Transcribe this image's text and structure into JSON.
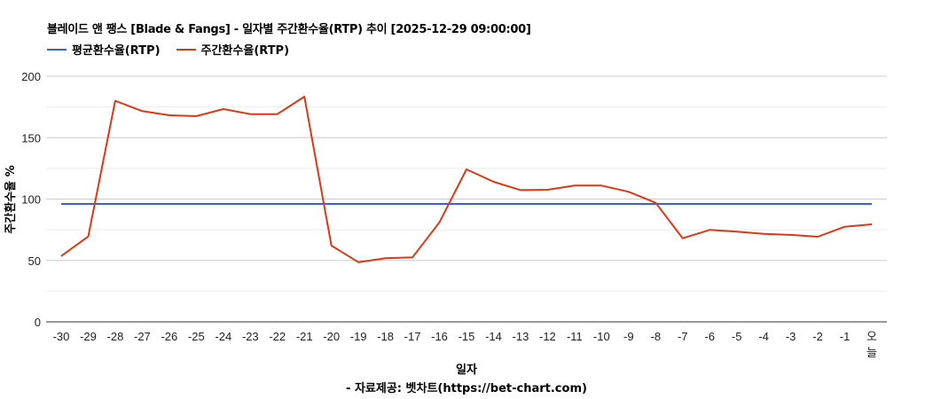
{
  "title": "블레이드 앤 팽스 [Blade & Fangs] - 일자별 주간환수율(RTP) 추이 [2025-12-29 09:00:00]",
  "legend": [
    {
      "label": "평균환수율(RTP)",
      "color": "#3366cc"
    },
    {
      "label": "주간환수율(RTP)",
      "color": "#dc3912"
    }
  ],
  "xaxis_title": "일자",
  "yaxis_title": "주간환수율 %",
  "footer": "- 자료제공: 벳차트(https://bet-chart.com)",
  "chart_data": {
    "type": "line",
    "title": "블레이드 앤 팽스 [Blade & Fangs] - 일자별 주간환수율(RTP) 추이 [2025-12-29 09:00:00]",
    "xlabel": "일자",
    "ylabel": "주간환수율 %",
    "ylim": [
      0,
      200
    ],
    "yticks": [
      0,
      50,
      100,
      150,
      200
    ],
    "grid": true,
    "legend_position": "top",
    "categories": [
      "-30",
      "-29",
      "-28",
      "-27",
      "-26",
      "-25",
      "-24",
      "-23",
      "-22",
      "-21",
      "-20",
      "-19",
      "-18",
      "-17",
      "-16",
      "-15",
      "-14",
      "-13",
      "-12",
      "-11",
      "-10",
      "-9",
      "-8",
      "-7",
      "-6",
      "-5",
      "-4",
      "-3",
      "-2",
      "-1",
      "오늘"
    ],
    "series": [
      {
        "name": "평균환수율(RTP)",
        "color": "#3366cc",
        "values": [
          96,
          96,
          96,
          96,
          96,
          96,
          96,
          96,
          96,
          96,
          96,
          96,
          96,
          96,
          96,
          96,
          96,
          96,
          96,
          96,
          96,
          96,
          96,
          96,
          96,
          96,
          96,
          96,
          96,
          96,
          96
        ]
      },
      {
        "name": "주간환수율(RTP)",
        "color": "#dc3912",
        "values": [
          53.6,
          69.5,
          180,
          171.6,
          168.2,
          167.5,
          173.3,
          169.2,
          169.2,
          183.4,
          62.1,
          48.6,
          51.8,
          52.5,
          81.1,
          124.2,
          114.1,
          107.3,
          107.6,
          111,
          111,
          105.9,
          97,
          68.1,
          74.9,
          73.4,
          71.7,
          70.8,
          69.3,
          77.5,
          79.4
        ]
      }
    ]
  }
}
